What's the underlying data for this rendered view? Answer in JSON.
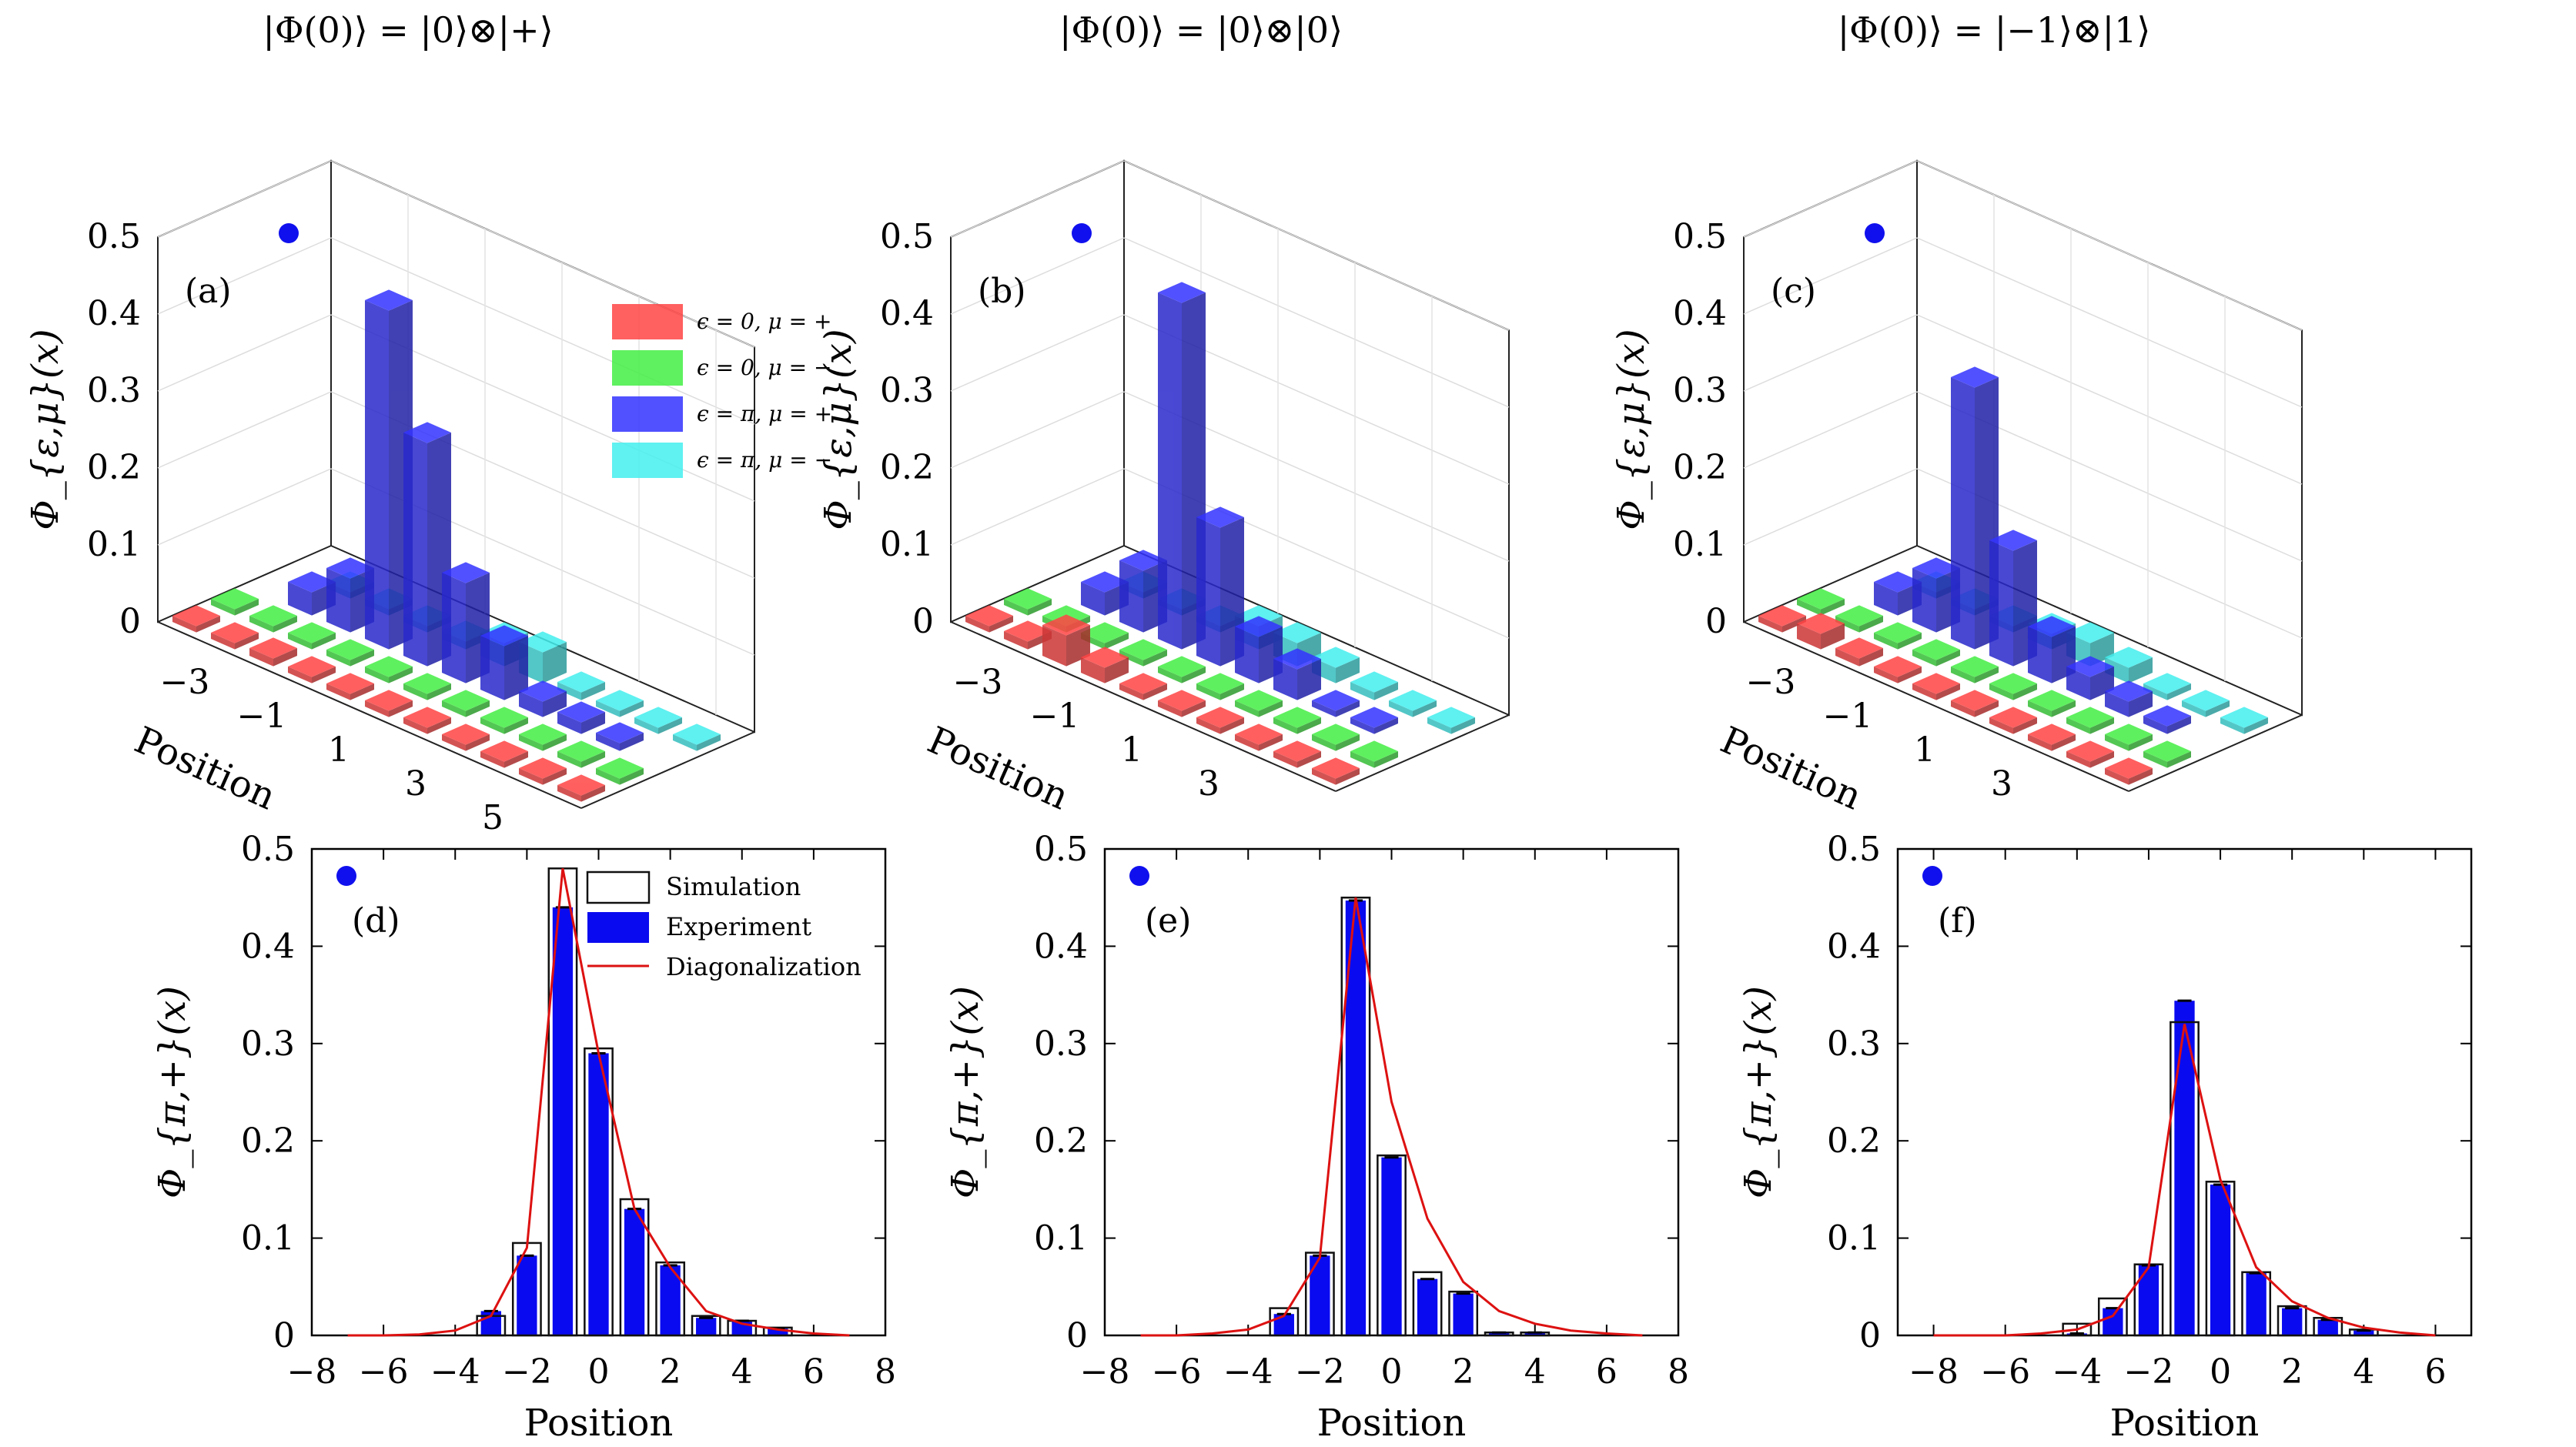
{
  "chart_data": [
    {
      "panel": "(a)",
      "type": "bar3d",
      "title": "|Φ(0)⟩ = |0⟩⊗|+⟩",
      "zlabel": "Φ_{ε,μ}(x)",
      "xlabel": "Position",
      "zlim": [
        0,
        0.5
      ],
      "z_ticks": [
        "0",
        "0.1",
        "0.2",
        "0.3",
        "0.4",
        "0.5"
      ],
      "x_ticks": [
        "−3",
        "−1",
        "1",
        "3",
        "5"
      ],
      "positions": [
        -4,
        -3,
        -2,
        -1,
        0,
        1,
        2,
        3,
        4,
        5,
        6
      ],
      "legend": [
        {
          "label": "ϵ = 0, μ = +",
          "color": "#ff4444"
        },
        {
          "label": "ϵ = 0, μ = −",
          "color": "#44ee44"
        },
        {
          "label": "ϵ = π, μ = +",
          "color": "#3333ff"
        },
        {
          "label": "ϵ = π, μ = −",
          "color": "#44eeee"
        }
      ],
      "series": [
        {
          "values": [
            0.005,
            0.005,
            0.01,
            0.005,
            0.005,
            0.005,
            0.005,
            0.005,
            0.005,
            0.005,
            0.005
          ]
        },
        {
          "values": [
            0.005,
            0.005,
            0.005,
            0.005,
            0.005,
            0.005,
            0.005,
            0.005,
            0.005,
            0.005,
            0.005
          ]
        },
        {
          "values": [
            0,
            0.03,
            0.07,
            0.44,
            0.29,
            0.13,
            0.07,
            0.02,
            0.015,
            0.01,
            0
          ]
        },
        {
          "values": [
            0,
            0.005,
            0.005,
            0.005,
            0.01,
            0.03,
            0.04,
            0.01,
            0.005,
            0.005,
            0.005
          ]
        }
      ]
    },
    {
      "panel": "(b)",
      "type": "bar3d",
      "title": "|Φ(0)⟩ = |0⟩⊗|0⟩",
      "zlabel": "Φ_{ε,μ}(x)",
      "xlabel": "Position",
      "zlim": [
        0,
        0.5
      ],
      "z_ticks": [
        "0",
        "0.1",
        "0.2",
        "0.3",
        "0.4",
        "0.5"
      ],
      "x_ticks": [
        "−3",
        "−1",
        "1",
        "3"
      ],
      "positions": [
        -4,
        -3,
        -2,
        -1,
        0,
        1,
        2,
        3,
        4,
        5
      ],
      "series": [
        {
          "values": [
            0.005,
            0.01,
            0.04,
            0.02,
            0.005,
            0.005,
            0.005,
            0.005,
            0.005,
            0.005
          ]
        },
        {
          "values": [
            0.005,
            0.005,
            0.005,
            0.005,
            0.005,
            0.005,
            0.005,
            0.005,
            0.005,
            0.005
          ]
        },
        {
          "values": [
            0,
            0.03,
            0.08,
            0.45,
            0.18,
            0.06,
            0.04,
            0.005,
            0.005,
            0
          ]
        },
        {
          "values": [
            0,
            0.005,
            0.005,
            0.005,
            0.03,
            0.03,
            0.02,
            0.01,
            0.005,
            0.005
          ]
        }
      ]
    },
    {
      "panel": "(c)",
      "type": "bar3d",
      "title": "|Φ(0)⟩ = |−1⟩⊗|1⟩",
      "zlabel": "Φ_{ε,μ}(x)",
      "xlabel": "Position",
      "zlim": [
        0,
        0.5
      ],
      "z_ticks": [
        "0",
        "0.1",
        "0.2",
        "0.3",
        "0.4",
        "0.5"
      ],
      "x_ticks": [
        "−3",
        "−1",
        "1",
        "3"
      ],
      "positions": [
        -4,
        -3,
        -2,
        -1,
        0,
        1,
        2,
        3,
        4,
        5
      ],
      "series": [
        {
          "values": [
            0.005,
            0.02,
            0.01,
            0.005,
            0.005,
            0.005,
            0.005,
            0.005,
            0.005,
            0.005
          ]
        },
        {
          "values": [
            0.005,
            0.005,
            0.005,
            0.005,
            0.005,
            0.005,
            0.005,
            0.005,
            0.005,
            0.005
          ]
        },
        {
          "values": [
            0,
            0.03,
            0.07,
            0.34,
            0.15,
            0.06,
            0.03,
            0.02,
            0.01,
            0
          ]
        },
        {
          "values": [
            0,
            0.005,
            0.005,
            0.005,
            0.02,
            0.03,
            0.02,
            0.005,
            0.005,
            0.005
          ]
        }
      ]
    },
    {
      "panel": "(d)",
      "type": "bar",
      "ylabel": "Φ_{π,+}(x)",
      "xlabel": "Position",
      "xlim": [
        -8,
        8
      ],
      "ylim": [
        0,
        0.5
      ],
      "x_ticks": [
        "−8",
        "−6",
        "−4",
        "−2",
        "0",
        "2",
        "4",
        "6",
        "8"
      ],
      "y_ticks": [
        "0",
        "0.1",
        "0.2",
        "0.3",
        "0.4",
        "0.5"
      ],
      "legend": [
        {
          "label": "Simulation"
        },
        {
          "label": "Experiment"
        },
        {
          "label": "Diagonalization"
        }
      ],
      "x": [
        -3,
        -2,
        -1,
        0,
        1,
        2,
        3,
        4,
        5
      ],
      "simulation": [
        0.02,
        0.095,
        0.48,
        0.295,
        0.14,
        0.075,
        0.02,
        0.015,
        0.008
      ],
      "experiment": [
        0.025,
        0.082,
        0.44,
        0.29,
        0.13,
        0.072,
        0.018,
        0.015,
        0.007
      ],
      "curve_x": [
        -7,
        -6,
        -5,
        -4,
        -3,
        -2,
        -1,
        0,
        1,
        2,
        3,
        4,
        5,
        6,
        7
      ],
      "curve_y": [
        0,
        0,
        0.001,
        0.005,
        0.02,
        0.09,
        0.48,
        0.29,
        0.13,
        0.07,
        0.025,
        0.012,
        0.006,
        0.002,
        0
      ]
    },
    {
      "panel": "(e)",
      "type": "bar",
      "ylabel": "Φ_{π,+}(x)",
      "xlabel": "Position",
      "xlim": [
        -8,
        8
      ],
      "ylim": [
        0,
        0.5
      ],
      "x_ticks": [
        "−8",
        "−6",
        "−4",
        "−2",
        "0",
        "2",
        "4",
        "6",
        "8"
      ],
      "y_ticks": [
        "0",
        "0.1",
        "0.2",
        "0.3",
        "0.4",
        "0.5"
      ],
      "x": [
        -3,
        -2,
        -1,
        0,
        1,
        2,
        3,
        4
      ],
      "simulation": [
        0.028,
        0.085,
        0.45,
        0.185,
        0.065,
        0.045,
        0.003,
        0.003
      ],
      "experiment": [
        0.022,
        0.082,
        0.447,
        0.183,
        0.058,
        0.043,
        0.003,
        0.003
      ],
      "curve_x": [
        -7,
        -6,
        -5,
        -4,
        -3,
        -2,
        -1,
        0,
        1,
        2,
        3,
        4,
        5,
        6,
        7
      ],
      "curve_y": [
        0,
        0,
        0.002,
        0.006,
        0.02,
        0.08,
        0.45,
        0.24,
        0.12,
        0.055,
        0.025,
        0.012,
        0.005,
        0.002,
        0
      ]
    },
    {
      "panel": "(f)",
      "type": "bar",
      "ylabel": "Φ_{π,+}(x)",
      "xlabel": "Position",
      "xlim": [
        -9,
        7
      ],
      "ylim": [
        0,
        0.5
      ],
      "x_ticks": [
        "−8",
        "−6",
        "−4",
        "−2",
        "0",
        "2",
        "4",
        "6"
      ],
      "y_ticks": [
        "0",
        "0.1",
        "0.2",
        "0.3",
        "0.4",
        "0.5"
      ],
      "x": [
        -4,
        -3,
        -2,
        -1,
        0,
        1,
        2,
        3,
        4
      ],
      "simulation": [
        0.012,
        0.038,
        0.073,
        0.322,
        0.158,
        0.065,
        0.03,
        0.018,
        0.006
      ],
      "experiment": [
        0.002,
        0.028,
        0.072,
        0.344,
        0.155,
        0.064,
        0.028,
        0.016,
        0.005
      ],
      "curve_x": [
        -8,
        -7,
        -6,
        -5,
        -4,
        -3,
        -2,
        -1,
        0,
        1,
        2,
        3,
        4,
        5,
        6
      ],
      "curve_y": [
        0,
        0,
        0,
        0.002,
        0.006,
        0.02,
        0.07,
        0.32,
        0.16,
        0.07,
        0.035,
        0.018,
        0.008,
        0.003,
        0
      ]
    }
  ]
}
